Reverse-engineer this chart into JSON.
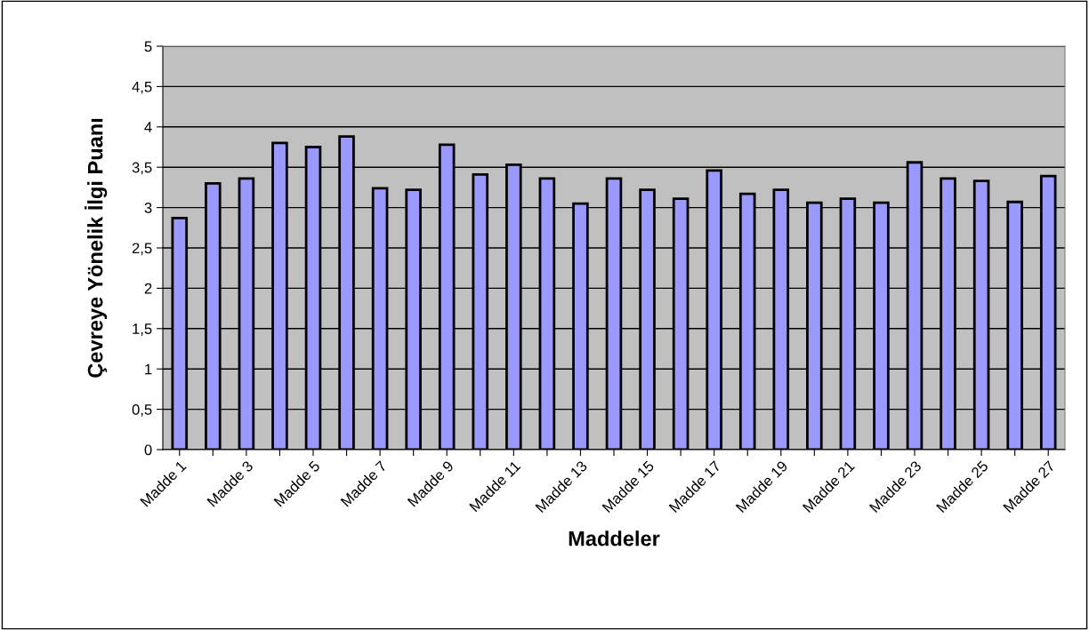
{
  "chart_data": {
    "type": "bar",
    "xlabel": "Maddeler",
    "ylabel": "Çevreye Yönelik İlgi Puanı",
    "categories": [
      "Madde 1",
      null,
      "Madde 3",
      null,
      "Madde 5",
      null,
      "Madde 7",
      null,
      "Madde 9",
      null,
      "Madde 11",
      null,
      "Madde 13",
      null,
      "Madde 15",
      null,
      "Madde 17",
      null,
      "Madde 19",
      null,
      "Madde 21",
      null,
      "Madde 23",
      null,
      "Madde 25",
      null,
      "Madde 27"
    ],
    "values": [
      2.87,
      3.3,
      3.36,
      3.8,
      3.75,
      3.88,
      3.24,
      3.22,
      3.78,
      3.41,
      3.53,
      3.36,
      3.05,
      3.36,
      3.22,
      3.11,
      3.46,
      3.17,
      3.22,
      3.06,
      3.11,
      3.06,
      3.56,
      3.36,
      3.33,
      3.07,
      3.39
    ],
    "color": "#9999ff",
    "ylim": [
      0,
      5
    ],
    "yticks": [
      0,
      {
        "value": 0.5,
        "label": "0,5"
      },
      1,
      {
        "value": 1.5,
        "label": "1,5"
      },
      2,
      {
        "value": 2.5,
        "label": "2,5"
      },
      3,
      {
        "value": 3.5,
        "label": "3,5"
      },
      4,
      {
        "value": 4.5,
        "label": "4,5"
      },
      5
    ],
    "grid": "y",
    "legend": false
  }
}
